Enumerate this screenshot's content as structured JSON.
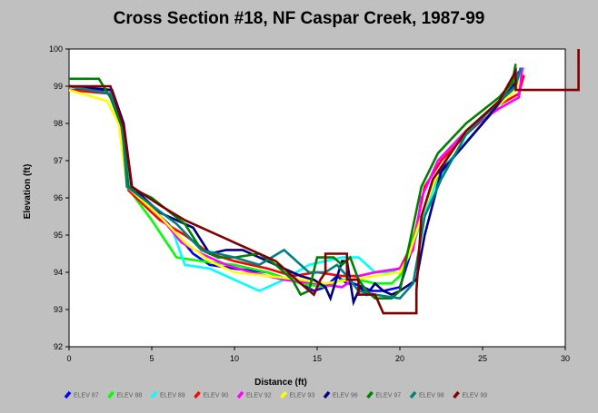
{
  "chart_data": {
    "type": "line",
    "title": "Cross Section #18, NF Caspar Creek, 1987-99",
    "xlabel": "Distance (ft)",
    "ylabel": "Elevation (ft)",
    "xlim": [
      0,
      30
    ],
    "ylim": [
      92,
      100
    ],
    "xticks": [
      0,
      5,
      10,
      15,
      20,
      25,
      30
    ],
    "yticks": [
      92,
      93,
      94,
      95,
      96,
      97,
      98,
      99,
      100
    ],
    "grid": false,
    "legend_position": "bottom",
    "series": [
      {
        "name": "ELEV 87",
        "color": "#0000ff",
        "x": [
          0,
          2.5,
          3.3,
          3.8,
          6,
          7.5,
          8.5,
          10,
          12,
          14,
          14.8,
          15.5,
          16.2,
          16.8,
          17.2,
          17.8,
          18.3,
          19,
          20,
          21,
          22,
          23,
          25,
          26.8,
          27.2
        ],
        "y": [
          98.9,
          98.9,
          97.9,
          96.2,
          95.3,
          94.5,
          94.2,
          94.1,
          94.0,
          93.7,
          93.5,
          93.6,
          93.9,
          93.7,
          93.7,
          93.6,
          93.5,
          93.5,
          93.6,
          95.0,
          96.5,
          97.0,
          98.0,
          98.9,
          99.4
        ]
      },
      {
        "name": "ELEV 88",
        "color": "#00ff00",
        "x": [
          0,
          2.5,
          3.1,
          3.5,
          5,
          6.5,
          8,
          10,
          12,
          14,
          15.5,
          16.5,
          17.5,
          18.5,
          19.5,
          20,
          20.5,
          21.2,
          22,
          23,
          25,
          27,
          27.3
        ],
        "y": [
          99.0,
          98.9,
          98.0,
          96.3,
          95.4,
          94.4,
          94.3,
          94.2,
          94.0,
          93.7,
          93.6,
          93.8,
          93.8,
          93.7,
          93.7,
          93.9,
          94.6,
          95.4,
          96.3,
          97.0,
          98.0,
          99.2,
          99.4
        ]
      },
      {
        "name": "ELEV 89",
        "color": "#00ffff",
        "x": [
          0,
          2.5,
          3.1,
          3.5,
          5,
          6.2,
          7,
          8.5,
          10,
          11.5,
          13,
          14.5,
          15.5,
          16.5,
          17.5,
          18.5,
          19.5,
          20.3,
          21,
          22,
          23,
          25,
          27,
          27.5
        ],
        "y": [
          98.9,
          98.8,
          98.0,
          96.3,
          95.6,
          95.2,
          94.2,
          94.1,
          93.8,
          93.5,
          93.8,
          94.2,
          94.3,
          94.4,
          94.4,
          94.0,
          94.0,
          94.2,
          95.0,
          96.2,
          97.0,
          98.0,
          99.1,
          99.5
        ]
      },
      {
        "name": "ELEV 90",
        "color": "#ff0000",
        "x": [
          0,
          2.5,
          3.2,
          3.6,
          5.5,
          7,
          8.5,
          10,
          12,
          13.5,
          15,
          16.5,
          17.5,
          18.5,
          20,
          20.8,
          21.5,
          22.5,
          24,
          26,
          27.2,
          27.5
        ],
        "y": [
          98.9,
          98.8,
          97.9,
          96.2,
          95.4,
          95.0,
          94.5,
          94.3,
          94.1,
          93.9,
          94.0,
          93.9,
          93.9,
          94.0,
          94.1,
          94.8,
          96.3,
          97.0,
          97.7,
          98.5,
          98.8,
          99.3
        ]
      },
      {
        "name": "ELEV 92",
        "color": "#ff00ff",
        "x": [
          0,
          2.5,
          3.1,
          3.6,
          5.5,
          6.8,
          8,
          9.5,
          11,
          13,
          15,
          16.5,
          17.5,
          18.5,
          20,
          20.8,
          21.3,
          22.3,
          24,
          26,
          27.2,
          27.4
        ],
        "y": [
          99.0,
          98.9,
          98.0,
          96.3,
          95.5,
          94.8,
          94.5,
          94.2,
          94.0,
          93.8,
          93.7,
          93.6,
          93.9,
          94.0,
          94.1,
          94.6,
          96.0,
          97.0,
          97.8,
          98.4,
          98.7,
          99.5
        ]
      },
      {
        "name": "ELEV 93",
        "color": "#ffff00",
        "x": [
          0,
          2.3,
          3.0,
          3.5,
          5.5,
          7,
          8.5,
          10,
          12,
          14,
          15.5,
          17,
          18.5,
          20,
          20.5,
          21.3,
          22.3,
          24,
          26,
          27,
          27.2
        ],
        "y": [
          98.9,
          98.6,
          98.0,
          96.3,
          95.5,
          94.8,
          94.3,
          94.0,
          93.9,
          93.8,
          93.7,
          93.8,
          93.9,
          94.0,
          94.4,
          95.5,
          96.7,
          97.8,
          98.5,
          98.9,
          99.1
        ]
      },
      {
        "name": "ELEV 96",
        "color": "#000080",
        "x": [
          0,
          2.6,
          3.3,
          3.8,
          5.5,
          7.5,
          8.5,
          9.5,
          10.5,
          12,
          14,
          14.8,
          15.5,
          15.8,
          16.5,
          16.8,
          17.2,
          17.6,
          18,
          18.5,
          19,
          19.5,
          20,
          21,
          21.5,
          22.5,
          25,
          27
        ],
        "y": [
          99.0,
          98.9,
          98.0,
          96.3,
          95.6,
          95.2,
          94.5,
          94.6,
          94.6,
          94.3,
          93.9,
          93.8,
          93.6,
          93.3,
          94.3,
          94.3,
          93.2,
          93.6,
          93.4,
          93.7,
          93.5,
          93.4,
          93.5,
          93.8,
          95.0,
          96.7,
          98.0,
          99.1
        ]
      },
      {
        "name": "ELEV 97",
        "color": "#008000",
        "x": [
          0,
          1.8,
          2.5,
          3.2,
          3.6,
          5,
          7,
          8,
          9,
          10,
          11.5,
          12.5,
          13.5,
          14,
          14.5,
          15,
          16,
          16.5,
          17,
          17.5,
          18,
          18.5,
          19.5,
          20,
          20.5,
          21.3,
          22.3,
          24,
          26,
          26.8,
          27
        ],
        "y": [
          99.2,
          99.2,
          98.7,
          97.9,
          96.3,
          96.0,
          95.3,
          94.6,
          94.4,
          94.4,
          94.5,
          94.2,
          93.8,
          93.4,
          93.5,
          94.4,
          94.4,
          94.2,
          94.4,
          93.8,
          93.5,
          93.3,
          93.3,
          93.5,
          94.6,
          96.3,
          97.2,
          98.0,
          98.7,
          99.1,
          99.6
        ]
      },
      {
        "name": "ELEV 98",
        "color": "#008080",
        "x": [
          0,
          2.5,
          3.2,
          3.5,
          5,
          6.5,
          8,
          9,
          10,
          11.5,
          13,
          14.5,
          15.5,
          16.2,
          16.8,
          17.5,
          18.5,
          20,
          20.8,
          21.5,
          22.5,
          24,
          26,
          27,
          27.3
        ],
        "y": [
          99.0,
          98.8,
          98.0,
          96.3,
          95.8,
          95.3,
          94.6,
          94.5,
          94.4,
          94.2,
          94.6,
          94.0,
          94.0,
          94.2,
          93.9,
          93.5,
          93.4,
          93.3,
          93.7,
          95.5,
          96.5,
          97.7,
          98.6,
          99.0,
          99.5
        ]
      },
      {
        "name": "ELEV 99",
        "color": "#800000",
        "x": [
          0,
          2.5,
          3.3,
          3.8,
          5.5,
          7,
          9,
          11,
          12.5,
          14,
          14.8,
          15.2,
          15.5,
          15.5,
          16.8,
          16.8,
          17.5,
          17.5,
          18.5,
          19,
          21,
          21,
          21.3,
          22,
          24,
          26,
          27,
          27,
          30.8,
          30.8
        ],
        "y": [
          99.0,
          99.0,
          97.9,
          96.3,
          95.8,
          95.4,
          95.0,
          94.6,
          94.3,
          93.7,
          93.4,
          93.8,
          94.0,
          94.5,
          94.5,
          93.8,
          93.8,
          93.4,
          93.4,
          92.9,
          92.9,
          93.5,
          95.5,
          96.5,
          97.8,
          98.6,
          99.4,
          98.9,
          98.9,
          100.0
        ]
      }
    ]
  }
}
